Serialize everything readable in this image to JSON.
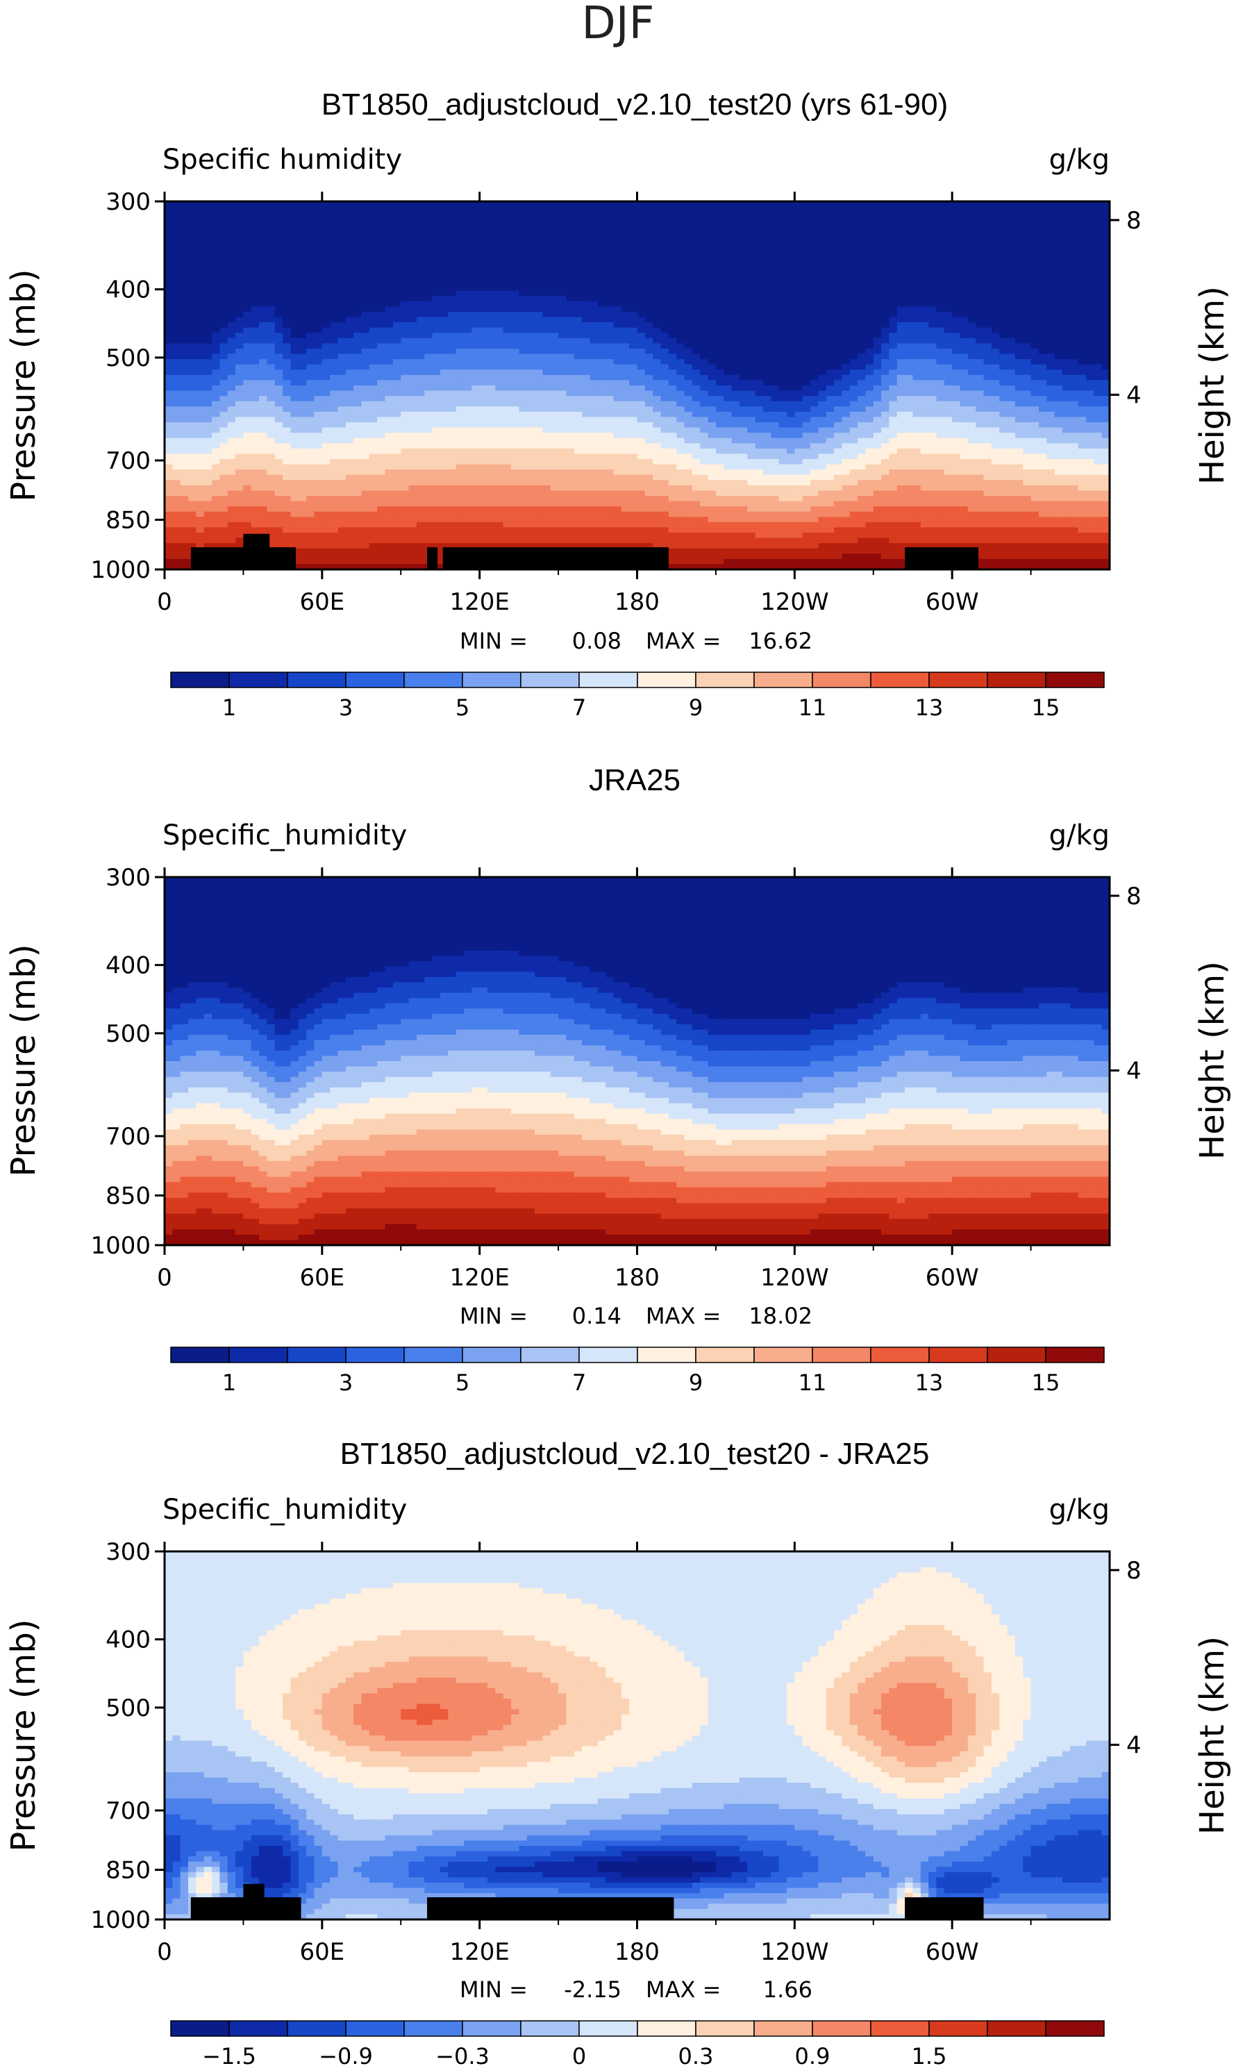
{
  "figure": {
    "title": "DJF"
  },
  "colors": {
    "seq": [
      "#0a1c8a",
      "#0e2aa8",
      "#1746c8",
      "#2a62e0",
      "#4a80ec",
      "#7aa2f0",
      "#a8c4f4",
      "#d6e6fa",
      "#fff0e0",
      "#fbd2b4",
      "#f8ae8c",
      "#f48766",
      "#ec5c3a",
      "#d83a1e",
      "#b8200e",
      "#900a0a"
    ],
    "div": [
      "#0a1c8a",
      "#0e2aa8",
      "#1746c8",
      "#2a62e0",
      "#4a80ec",
      "#7aa2f0",
      "#a8c4f4",
      "#d6e6fa",
      "#fff0e0",
      "#fbd2b4",
      "#f8ae8c",
      "#f48766",
      "#ec5c3a",
      "#d83a1e",
      "#b8200e",
      "#900a0a"
    ],
    "topography": "#000000"
  },
  "chart_data": [
    {
      "type": "heatmap",
      "title": "BT1850_adjustcloud_v2.10_test20 (yrs 61-90)",
      "left_label": "Specific humidity",
      "units": "g/kg",
      "ylabel": "Pressure (mb)",
      "ylabel_right": "Height (km)",
      "yticks": [
        "300",
        "400",
        "500",
        "700",
        "850",
        "1000"
      ],
      "yticks_right": [
        "8",
        "4"
      ],
      "xticks": [
        "0",
        "60E",
        "120E",
        "180",
        "120W",
        "60W"
      ],
      "xlim": [
        0,
        360
      ],
      "ylim": [
        1000,
        300
      ],
      "min_label": "MIN =",
      "min_value": "0.08",
      "max_label": "MAX =",
      "max_value": "16.62",
      "colorbar_labels": [
        "1",
        "3",
        "5",
        "7",
        "9",
        "11",
        "13",
        "15"
      ],
      "levels": [
        1,
        2,
        3,
        4,
        5,
        6,
        7,
        8,
        9,
        10,
        11,
        12,
        13,
        14,
        15
      ],
      "profile": {
        "lon": [
          0,
          15,
          30,
          40,
          50,
          70,
          90,
          120,
          150,
          180,
          210,
          240,
          270,
          280,
          290,
          310,
          340,
          360
        ],
        "p_of_1gkg": [
          480,
          480,
          430,
          420,
          470,
          440,
          420,
          400,
          410,
          430,
          520,
          560,
          480,
          420,
          420,
          450,
          500,
          520
        ],
        "p_of_15gkg": [
          960,
          975,
          960,
          990,
          980,
          985,
          975,
          980,
          985,
          980,
          975,
          970,
          950,
          970,
          975,
          970,
          965,
          960
        ]
      },
      "topo": [
        [
          10,
          930,
          40
        ],
        [
          30,
          890,
          10
        ],
        [
          100,
          930,
          4
        ],
        [
          106,
          930,
          86
        ],
        [
          282,
          930,
          28
        ]
      ]
    },
    {
      "type": "heatmap",
      "title": "JRA25",
      "left_label": "Specific_humidity",
      "units": "g/kg",
      "ylabel": "Pressure (mb)",
      "ylabel_right": "Height (km)",
      "yticks": [
        "300",
        "400",
        "500",
        "700",
        "850",
        "1000"
      ],
      "yticks_right": [
        "8",
        "4"
      ],
      "xticks": [
        "0",
        "60E",
        "120E",
        "180",
        "120W",
        "60W"
      ],
      "xlim": [
        0,
        360
      ],
      "ylim": [
        1000,
        300
      ],
      "min_label": "MIN =",
      "min_value": "0.14",
      "max_label": "MAX =",
      "max_value": "18.02",
      "colorbar_labels": [
        "1",
        "3",
        "5",
        "7",
        "9",
        "11",
        "13",
        "15"
      ],
      "levels": [
        1,
        2,
        3,
        4,
        5,
        6,
        7,
        8,
        9,
        10,
        11,
        12,
        13,
        14,
        15
      ],
      "profile": {
        "lon": [
          0,
          15,
          30,
          40,
          45,
          60,
          90,
          120,
          150,
          180,
          210,
          240,
          270,
          280,
          290,
          310,
          340,
          360
        ],
        "p_of_1gkg": [
          440,
          420,
          430,
          460,
          480,
          430,
          400,
          380,
          390,
          430,
          480,
          480,
          450,
          420,
          420,
          440,
          430,
          440
        ],
        "p_of_15gkg": [
          960,
          945,
          960,
          990,
          990,
          950,
          940,
          950,
          955,
          960,
          965,
          960,
          950,
          975,
          965,
          950,
          950,
          950
        ]
      },
      "topo": []
    },
    {
      "type": "heatmap",
      "title": "BT1850_adjustcloud_v2.10_test20 - JRA25",
      "left_label": "Specific_humidity",
      "units": "g/kg",
      "ylabel": "Pressure (mb)",
      "ylabel_right": "Height (km)",
      "yticks": [
        "300",
        "400",
        "500",
        "700",
        "850",
        "1000"
      ],
      "yticks_right": [
        "8",
        "4"
      ],
      "xticks": [
        "0",
        "60E",
        "120E",
        "180",
        "120W",
        "60W"
      ],
      "xlim": [
        0,
        360
      ],
      "ylim": [
        1000,
        300
      ],
      "min_label": "MIN =",
      "min_value": "-2.15",
      "max_label": "MAX =",
      "max_value": "1.66",
      "colorbar_labels": [
        "−1.5",
        "−0.9",
        "−0.3",
        "0",
        "0.3",
        "0.9",
        "1.5"
      ],
      "levels": [
        -2.1,
        -1.8,
        -1.5,
        -1.2,
        -0.9,
        -0.6,
        -0.3,
        0,
        0.3,
        0.6,
        0.9,
        1.2,
        1.5,
        1.8,
        2.1
      ],
      "blobs": [
        {
          "lon": 110,
          "p": 500,
          "rl": 70,
          "rp": 120,
          "v": 1.1
        },
        {
          "lon": 90,
          "p": 520,
          "rl": 35,
          "rp": 60,
          "v": 0.35
        },
        {
          "lon": 290,
          "p": 520,
          "rl": 28,
          "rp": 140,
          "v": 1.2
        },
        {
          "lon": 262,
          "p": 500,
          "rl": 22,
          "rp": 70,
          "v": 0.35
        },
        {
          "lon": 160,
          "p": 850,
          "rl": 110,
          "rp": 110,
          "v": -1.3
        },
        {
          "lon": 190,
          "p": 845,
          "rl": 40,
          "rp": 50,
          "v": -0.8
        },
        {
          "lon": 120,
          "p": 850,
          "rl": 30,
          "rp": 40,
          "v": -0.4
        },
        {
          "lon": 42,
          "p": 860,
          "rl": 14,
          "rp": 160,
          "v": -1.2
        },
        {
          "lon": 345,
          "p": 820,
          "rl": 40,
          "rp": 160,
          "v": -1.4
        },
        {
          "lon": 230,
          "p": 760,
          "rl": 60,
          "rp": 120,
          "v": -0.5
        },
        {
          "lon": 20,
          "p": 700,
          "rl": 30,
          "rp": 200,
          "v": -0.4
        },
        {
          "lon": 15,
          "p": 880,
          "rl": 8,
          "rp": 60,
          "v": 1.5
        },
        {
          "lon": 285,
          "p": 930,
          "rl": 6,
          "rp": 60,
          "v": 1.4
        },
        {
          "lon": 300,
          "p": 900,
          "rl": 20,
          "rp": 60,
          "v": -1.0
        }
      ],
      "base": -0.15,
      "topo": [
        [
          10,
          930,
          42
        ],
        [
          30,
          890,
          8
        ],
        [
          100,
          930,
          94
        ],
        [
          282,
          930,
          30
        ]
      ]
    }
  ]
}
